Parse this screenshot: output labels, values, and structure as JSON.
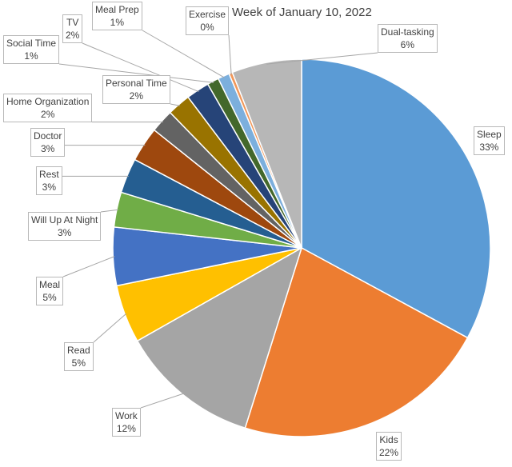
{
  "chart_data": {
    "type": "pie",
    "title": "Week of January 10, 2022",
    "slices": [
      {
        "label": "Sleep",
        "value": 33,
        "value_label": "33%",
        "color": "#5b9bd5"
      },
      {
        "label": "Kids",
        "value": 22,
        "value_label": "22%",
        "color": "#ed7d31"
      },
      {
        "label": "Work",
        "value": 12,
        "value_label": "12%",
        "color": "#a5a5a5"
      },
      {
        "label": "Read",
        "value": 5,
        "value_label": "5%",
        "color": "#ffc000"
      },
      {
        "label": "Meal",
        "value": 5,
        "value_label": "5%",
        "color": "#4472c4"
      },
      {
        "label": "Will Up At Night",
        "value": 3,
        "value_label": "3%",
        "color": "#70ad47"
      },
      {
        "label": "Rest",
        "value": 3,
        "value_label": "3%",
        "color": "#255e91"
      },
      {
        "label": "Doctor",
        "value": 3,
        "value_label": "3%",
        "color": "#9e480e"
      },
      {
        "label": "Home Organization",
        "value": 2,
        "value_label": "2%",
        "color": "#636363"
      },
      {
        "label": "Personal Time",
        "value": 2,
        "value_label": "2%",
        "color": "#997300"
      },
      {
        "label": "TV",
        "value": 2,
        "value_label": "2%",
        "color": "#264478"
      },
      {
        "label": "Social Time",
        "value": 1,
        "value_label": "1%",
        "color": "#43682b"
      },
      {
        "label": "Meal Prep",
        "value": 1,
        "value_label": "1%",
        "color": "#7cafdd"
      },
      {
        "label": "Exercise",
        "value": 0,
        "value_label": "0%",
        "color": "#f1975a"
      },
      {
        "label": "Dual-tasking",
        "value": 6,
        "value_label": "6%",
        "color": "#b7b7b7"
      }
    ]
  }
}
